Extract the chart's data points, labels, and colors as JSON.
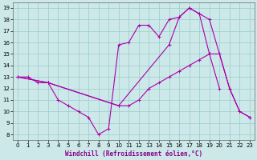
{
  "bg_color": "#cce8e8",
  "line_color": "#aa00aa",
  "grid_color": "#99cccc",
  "xlabel": "Windchill (Refroidissement éolien,°C)",
  "series": [
    {
      "x": [
        0,
        1,
        2,
        3,
        4,
        5,
        6,
        7,
        8,
        9,
        10,
        11,
        12,
        13,
        14,
        15,
        16,
        17,
        18,
        19,
        20,
        21,
        22,
        23
      ],
      "y": [
        13,
        13,
        12.5,
        12.5,
        11,
        10.5,
        10,
        9.5,
        8,
        8.5,
        15.8,
        16,
        17.5,
        17.5,
        16.5,
        18,
        18.2,
        19,
        18.5,
        18,
        15,
        12,
        10,
        9.5
      ]
    },
    {
      "x": [
        0,
        3,
        10,
        11,
        12,
        13,
        14,
        15,
        16,
        17,
        18,
        19,
        20,
        21,
        22,
        23
      ],
      "y": [
        13,
        12.5,
        10.5,
        10.5,
        11,
        12,
        12.5,
        13,
        13.5,
        14,
        14.5,
        15,
        15,
        12,
        10,
        9.5
      ]
    },
    {
      "x": [
        0,
        3,
        10,
        15,
        16,
        17,
        18,
        19,
        20
      ],
      "y": [
        13,
        12.5,
        10.5,
        15.8,
        18.2,
        19,
        18.5,
        15,
        12
      ]
    }
  ],
  "xlim": [
    -0.5,
    23.5
  ],
  "ylim": [
    7.5,
    19.5
  ],
  "yticks": [
    8,
    9,
    10,
    11,
    12,
    13,
    14,
    15,
    16,
    17,
    18,
    19
  ],
  "xticks": [
    0,
    1,
    2,
    3,
    4,
    5,
    6,
    7,
    8,
    9,
    10,
    11,
    12,
    13,
    14,
    15,
    16,
    17,
    18,
    19,
    20,
    21,
    22,
    23
  ],
  "tick_fontsize": 5.0,
  "xlabel_fontsize": 5.5,
  "figsize": [
    3.2,
    2.0
  ],
  "dpi": 100
}
